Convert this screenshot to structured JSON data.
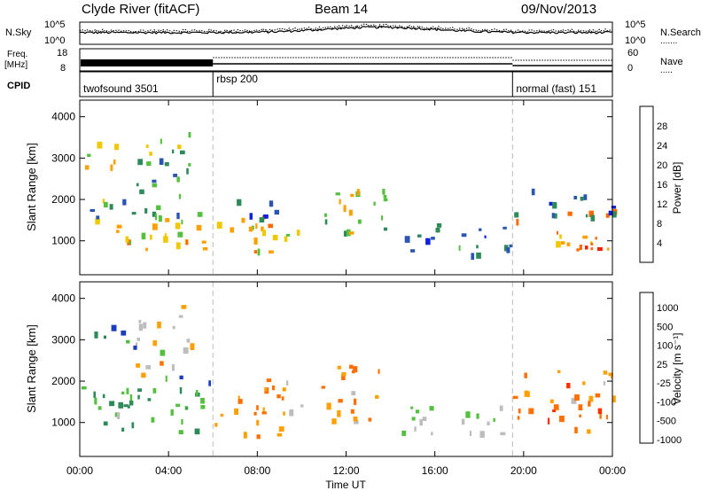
{
  "header": {
    "station": "Clyde River (fitACF)",
    "beam": "Beam 14",
    "date": "09/Nov/2013"
  },
  "noise_panel": {
    "left_label": "N.Sky",
    "right_label": "N.Search",
    "y_ticks": [
      "10^5",
      "10^0"
    ]
  },
  "freq_panel": {
    "left_label_1": "Freq.",
    "left_label_2": "[MHz]",
    "right_label": "Nave",
    "left_ticks": [
      "18",
      "8"
    ],
    "right_ticks": [
      "60",
      "0"
    ]
  },
  "cpid_panel": {
    "label": "CPID",
    "modes": [
      {
        "name": "twofsound 3501",
        "start_hour": 0,
        "end_hour": 6
      },
      {
        "name": "rbsp 200",
        "start_hour": 6,
        "end_hour": 19.5
      },
      {
        "name": "normal (fast) 151",
        "start_hour": 19.5,
        "end_hour": 24
      }
    ]
  },
  "axes": {
    "ylabel": "Slant Range [km]",
    "xlabel": "Time UT",
    "y_ticks": [
      "1000",
      "2000",
      "3000",
      "4000"
    ],
    "x_ticks": [
      "00:00",
      "04:00",
      "08:00",
      "12:00",
      "16:00",
      "20:00",
      "00:00"
    ]
  },
  "power_colorbar": {
    "label": "Power [dB]",
    "ticks": [
      "4",
      "8",
      "12",
      "16",
      "20",
      "24",
      "28"
    ]
  },
  "velocity_colorbar": {
    "label": "Velocity [m s⁻¹]",
    "ticks": [
      "1000",
      "500",
      "100",
      "25",
      "-25",
      "-100",
      "-500",
      "-1000"
    ]
  },
  "chart_data": {
    "type": "heatmap",
    "x_range_hours": [
      0,
      24
    ],
    "y_range_km": [
      180,
      4400
    ],
    "mode_boundaries_hours": [
      6,
      19.5
    ],
    "power_colors": [
      "#1020e0",
      "#2a55b0",
      "#2f8a5a",
      "#55c040",
      "#f0c800",
      "#ffa000",
      "#ff6a00",
      "#f02000"
    ],
    "velocity_colors": [
      "#1a3dc0",
      "#2f8a5a",
      "#55c040",
      "#bdbdbd",
      "#ffa000",
      "#ff7000",
      "#ff3000",
      "#e00000"
    ],
    "scatter_regions": [
      {
        "h0": 0,
        "h1": 6,
        "r0": 800,
        "r1": 1600,
        "power": 24,
        "velocity": 100
      },
      {
        "h0": 0,
        "h1": 6,
        "r0": 1600,
        "r1": 2200,
        "power": 14,
        "velocity": 100
      },
      {
        "h0": 2.5,
        "h1": 5,
        "r0": 2200,
        "r1": 3900,
        "power": 16,
        "velocity": -25
      },
      {
        "h0": 0.2,
        "h1": 2.5,
        "r0": 2800,
        "r1": 3400,
        "power": 18,
        "velocity": 500
      },
      {
        "h0": 6,
        "h1": 10,
        "r0": 700,
        "r1": 1700,
        "power": 22,
        "velocity": -100
      },
      {
        "h0": 7,
        "h1": 9.5,
        "r0": 1500,
        "r1": 2100,
        "power": 12,
        "velocity": -100
      },
      {
        "h0": 10.8,
        "h1": 13.8,
        "r0": 1000,
        "r1": 2400,
        "power": 20,
        "velocity": -100
      },
      {
        "h0": 14.5,
        "h1": 19.5,
        "r0": 700,
        "r1": 1500,
        "power": 12,
        "velocity": 25
      },
      {
        "h0": 19.5,
        "h1": 24,
        "r0": 800,
        "r1": 1800,
        "power": 26,
        "velocity": -100
      },
      {
        "h0": 19.5,
        "h1": 24,
        "r0": 1600,
        "r1": 2300,
        "power": 10,
        "velocity": -100
      }
    ]
  }
}
